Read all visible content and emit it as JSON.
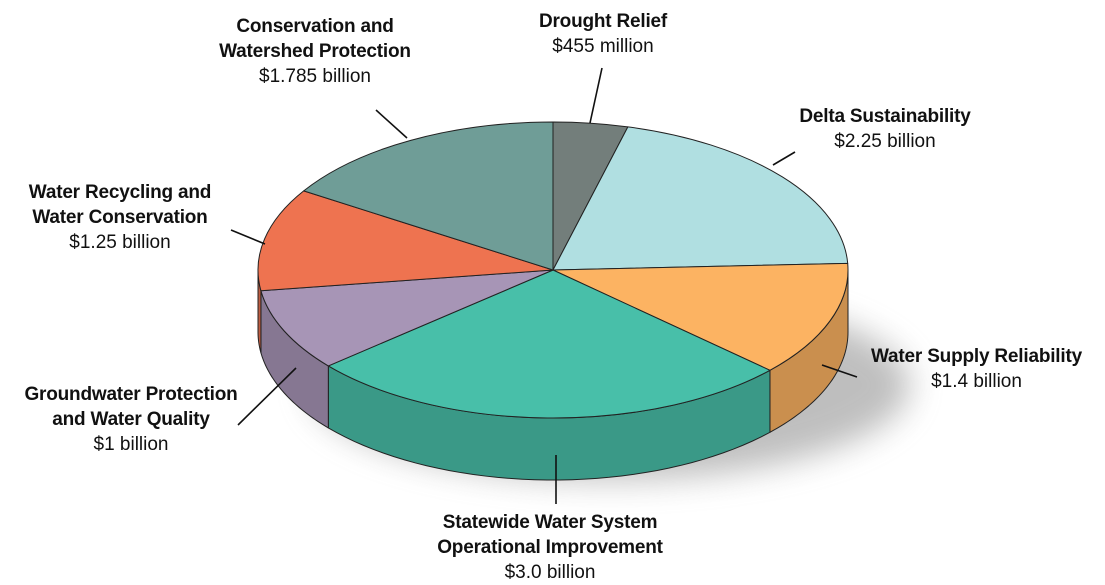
{
  "chart_data": {
    "type": "pie",
    "title": "",
    "units": "",
    "slices": [
      {
        "id": "drought",
        "label": [
          "Drought Relief"
        ],
        "value_label": "$455 million",
        "value": 0.455,
        "color": "#737e7b"
      },
      {
        "id": "delta",
        "label": [
          "Delta Sustainability"
        ],
        "value_label": "$2.25 billion",
        "value": 2.25,
        "color": "#b0dfe1"
      },
      {
        "id": "supply",
        "label": [
          "Water Supply Reliability"
        ],
        "value_label": "$1.4 billion",
        "value": 1.4,
        "color": "#fcb362"
      },
      {
        "id": "statewide",
        "label": [
          "Statewide Water System",
          "Operational Improvement"
        ],
        "value_label": "$3.0 billion",
        "value": 3.0,
        "color": "#48bfa9"
      },
      {
        "id": "groundwater",
        "label": [
          "Groundwater Protection",
          "and Water Quality"
        ],
        "value_label": "$1 billion",
        "value": 1.0,
        "color": "#a795b6"
      },
      {
        "id": "recycling",
        "label": [
          "Water Recycling and",
          "Water Conservation"
        ],
        "value_label": "$1.25 billion",
        "value": 1.25,
        "color": "#ee7350"
      },
      {
        "id": "conservation",
        "label": [
          "Conservation and",
          "Watershed Protection"
        ],
        "value_label": "$1.785 billion",
        "value": 1.785,
        "color": "#6f9d97"
      }
    ]
  }
}
